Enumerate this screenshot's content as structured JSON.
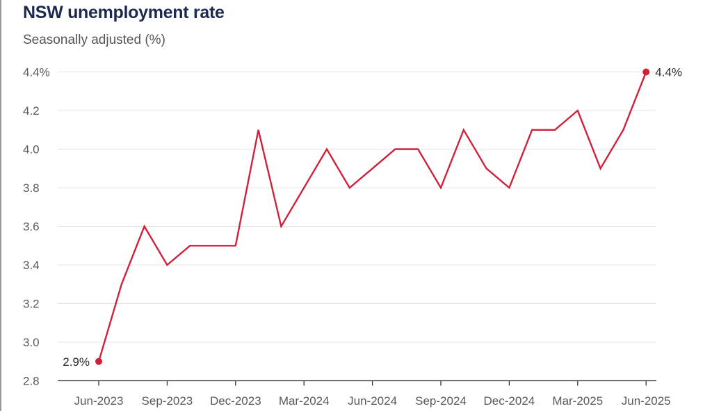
{
  "title": "NSW unemployment rate",
  "subtitle": "Seasonally adjusted (%)",
  "chart_data": {
    "type": "line",
    "title": "NSW unemployment rate",
    "subtitle": "Seasonally adjusted (%)",
    "xlabel": "",
    "ylabel": "",
    "x": [
      "2023-06",
      "2023-07",
      "2023-08",
      "2023-09",
      "2023-10",
      "2023-11",
      "2023-12",
      "2024-01",
      "2024-02",
      "2024-03",
      "2024-04",
      "2024-05",
      "2024-06",
      "2024-07",
      "2024-08",
      "2024-09",
      "2024-10",
      "2024-11",
      "2024-12",
      "2025-01",
      "2025-02",
      "2025-03",
      "2025-04",
      "2025-05",
      "2025-06"
    ],
    "series": [
      {
        "values": [
          2.9,
          3.3,
          3.6,
          3.4,
          3.5,
          3.5,
          3.5,
          4.1,
          3.6,
          3.8,
          4.0,
          3.8,
          3.9,
          4.0,
          4.0,
          3.8,
          4.1,
          3.9,
          3.8,
          4.1,
          4.1,
          4.2,
          3.9,
          4.1,
          4.4
        ],
        "color": "#d0213a"
      }
    ],
    "ylim": [
      2.8,
      4.4
    ],
    "yticks": [
      "4.4%",
      "4.2",
      "4.0",
      "3.8",
      "3.6",
      "3.4",
      "3.2",
      "3.0",
      "2.8"
    ],
    "xticks": [
      "Jun-2023",
      "Sep-2023",
      "Dec-2023",
      "Mar-2024",
      "Jun-2024",
      "Sep-2024",
      "Dec-2024",
      "Mar-2025",
      "Jun-2025"
    ],
    "annotations": [
      {
        "label": "2.9%",
        "x": "2023-06",
        "y": 2.9
      },
      {
        "label": "4.4%",
        "x": "2025-06",
        "y": 4.4
      }
    ],
    "grid": true,
    "gridline_color": "#e4e4e4",
    "axis_color": "#333333"
  }
}
